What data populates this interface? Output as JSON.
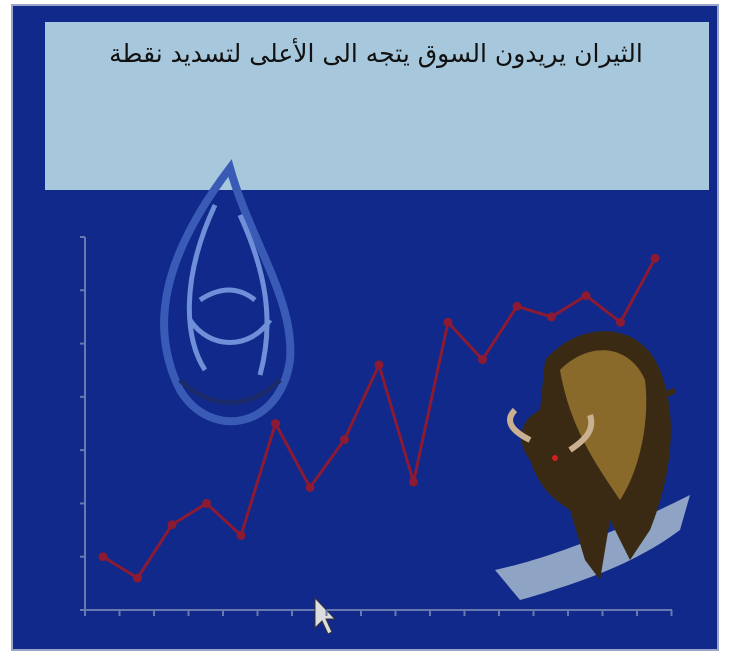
{
  "chart_data": {
    "type": "line",
    "title": "الثيران يريدون السوق يتجه الى الأعلى لتسديد نقطة",
    "categories": [
      null,
      null,
      null,
      null,
      null,
      null,
      null,
      null,
      null,
      null,
      null,
      null,
      null,
      null,
      null,
      null,
      null
    ],
    "values": [
      1.0,
      0.6,
      1.6,
      2.0,
      1.4,
      3.5,
      2.3,
      3.2,
      4.6,
      2.4,
      5.4,
      4.7,
      5.7,
      5.5,
      5.9,
      5.4,
      6.6
    ],
    "color": "#8b1a32",
    "ylim": [
      0,
      7
    ],
    "yticks": [
      0,
      1,
      2,
      3,
      4,
      5,
      6,
      7
    ]
  }
}
